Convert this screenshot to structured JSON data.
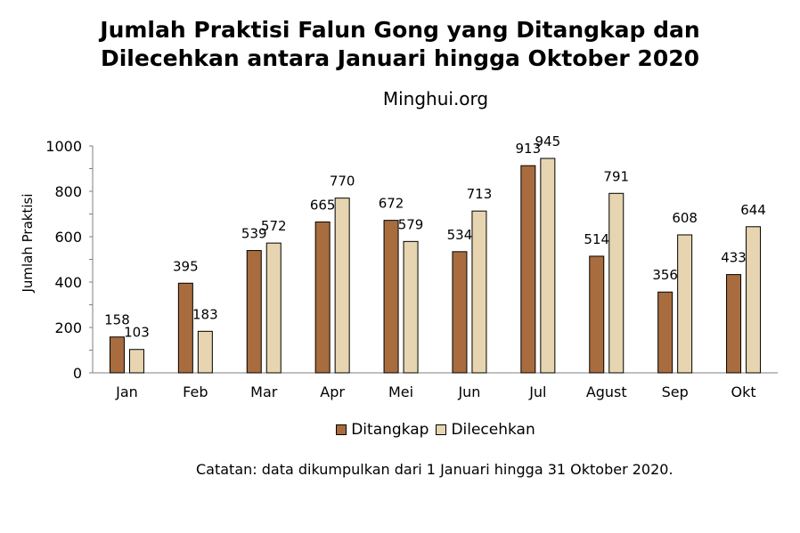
{
  "chart_data": {
    "type": "bar",
    "title": [
      "Jumlah Praktisi Falun Gong yang Ditangkap dan",
      "Dilecehkan antara Januari hingga Oktober 2020"
    ],
    "subtitle": "Minghui.org",
    "ylabel": "Jumlah Praktisi",
    "xlabel": "",
    "ylim": [
      0,
      1000
    ],
    "yticks": [
      0,
      200,
      400,
      600,
      800,
      1000
    ],
    "categories": [
      "Jan",
      "Feb",
      "Mar",
      "Apr",
      "Mei",
      "Jun",
      "Jul",
      "Agust",
      "Sep",
      "Okt"
    ],
    "series": [
      {
        "name": "Ditangkap",
        "color": "#A86C3E",
        "values": [
          158,
          395,
          539,
          665,
          672,
          534,
          913,
          514,
          356,
          433
        ]
      },
      {
        "name": "Dilecehkan",
        "color": "#E6D5B0",
        "values": [
          103,
          183,
          572,
          770,
          579,
          713,
          945,
          791,
          608,
          644
        ]
      }
    ],
    "legend_position": "bottom",
    "grid": false,
    "note": "Catatan: data dikumpulkan dari 1 Januari hingga 31 Oktober 2020."
  }
}
